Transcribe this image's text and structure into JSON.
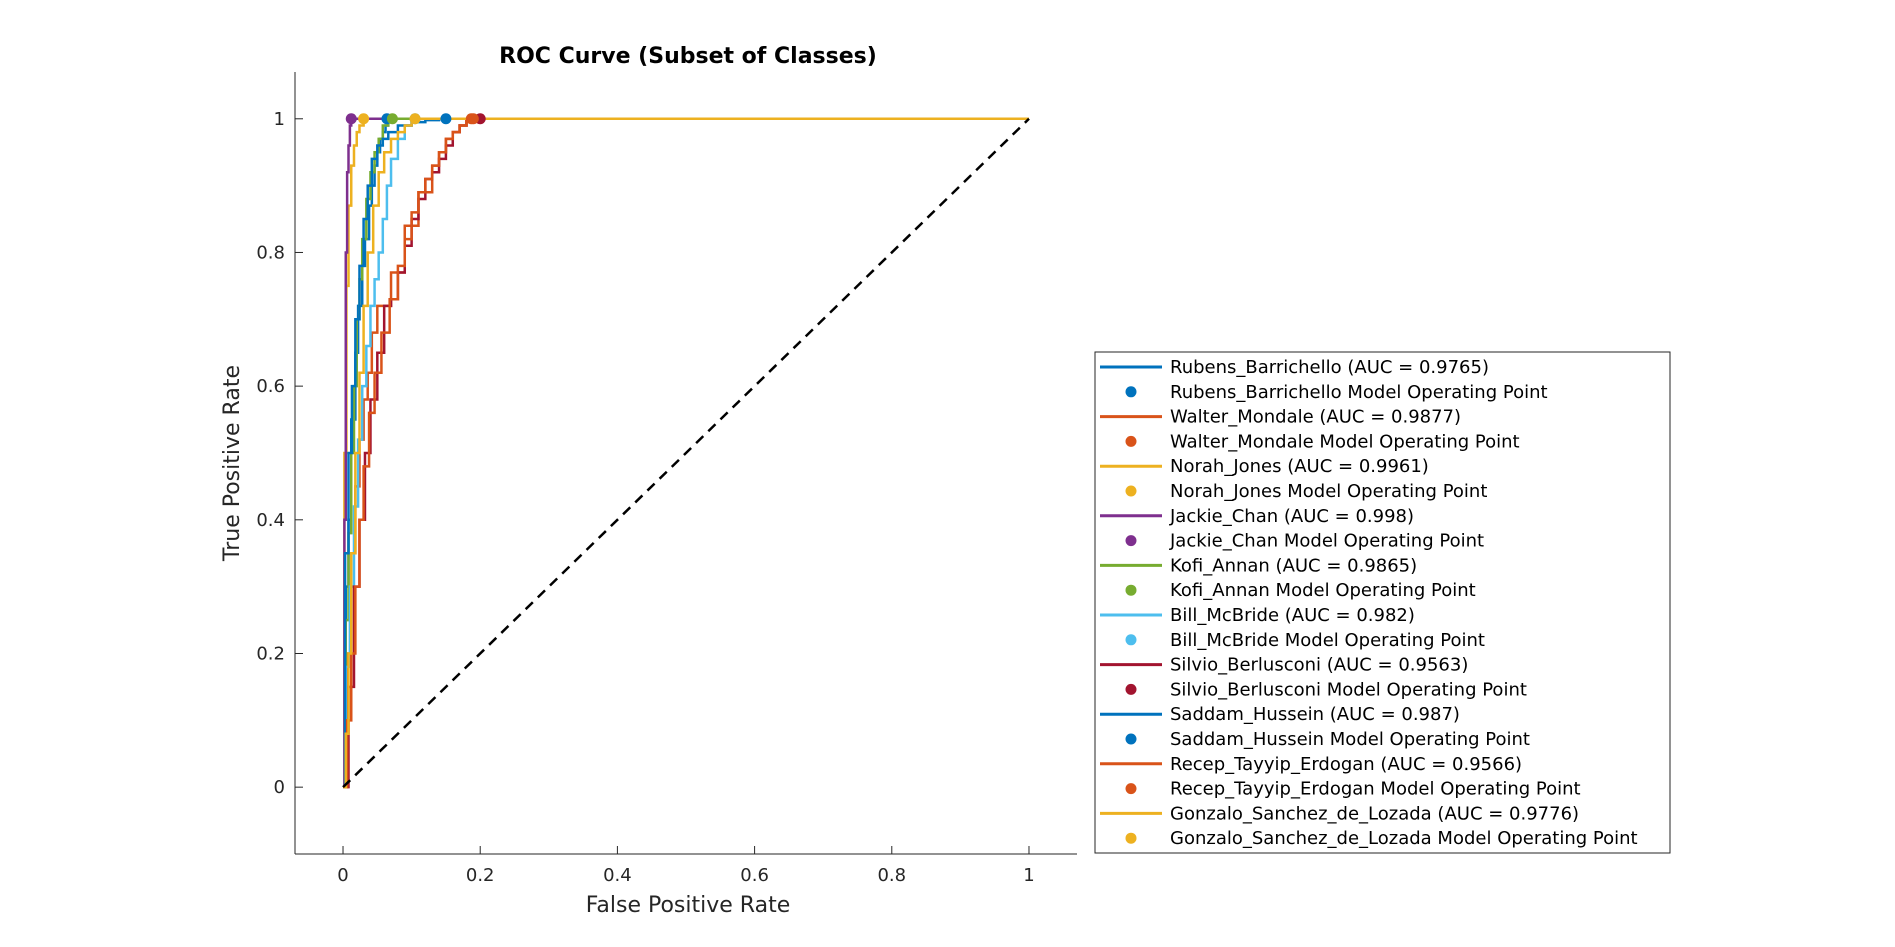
{
  "chart_data": {
    "type": "line",
    "title": "ROC Curve (Subset of Classes)",
    "xlabel": "False Positive Rate",
    "ylabel": "True Positive Rate",
    "xlim": [
      -0.07,
      1.07
    ],
    "ylim": [
      -0.1,
      1.07
    ],
    "xticks": [
      0,
      0.2,
      0.4,
      0.6,
      0.8,
      1
    ],
    "yticks": [
      0,
      0.2,
      0.4,
      0.6,
      0.8,
      1
    ],
    "xtick_labels": [
      "0",
      "0.2",
      "0.4",
      "0.6",
      "0.8",
      "1"
    ],
    "ytick_labels": [
      "0",
      "0.2",
      "0.4",
      "0.6",
      "0.8",
      "1"
    ],
    "grid": false,
    "legend_position": "right",
    "diagonal": {
      "x": [
        0,
        1
      ],
      "y": [
        0,
        1
      ],
      "style": "dashed",
      "color": "#000000"
    },
    "series": [
      {
        "label": "Rubens_Barrichello (AUC = 0.9765)",
        "point_label": "Rubens_Barrichello Model Operating Point",
        "color": "#0072BD",
        "x": [
          0,
          0.004,
          0.008,
          0.012,
          0.018,
          0.022,
          0.028,
          0.032,
          0.038,
          0.042,
          0.046,
          0.05,
          0.054,
          0.058,
          0.062,
          0.066,
          1
        ],
        "y": [
          0,
          0.3,
          0.4,
          0.55,
          0.65,
          0.72,
          0.78,
          0.82,
          0.87,
          0.9,
          0.93,
          0.95,
          0.97,
          0.98,
          0.99,
          1,
          1
        ],
        "op": [
          0.064,
          1
        ]
      },
      {
        "label": "Walter_Mondale (AUC = 0.9877)",
        "point_label": "Walter_Mondale Model Operating Point",
        "color": "#D95319",
        "x": [
          0,
          0.006,
          0.012,
          0.018,
          0.024,
          0.03,
          0.036,
          0.042,
          0.05,
          0.07,
          0.09,
          0.11,
          0.13,
          0.14,
          0.15,
          0.16,
          0.17,
          0.18,
          0.19,
          1
        ],
        "y": [
          0,
          0.2,
          0.35,
          0.45,
          0.52,
          0.58,
          0.62,
          0.68,
          0.72,
          0.77,
          0.84,
          0.89,
          0.93,
          0.95,
          0.97,
          0.98,
          0.99,
          1,
          1,
          1
        ],
        "op": [
          0.187,
          1
        ]
      },
      {
        "label": "Norah_Jones (AUC = 0.9961)",
        "point_label": "Norah_Jones Model Operating Point",
        "color": "#EDB120",
        "x": [
          0,
          0.002,
          0.005,
          0.008,
          0.012,
          0.016,
          0.02,
          0.024,
          0.03,
          0.036,
          1
        ],
        "y": [
          0,
          0.5,
          0.75,
          0.87,
          0.93,
          0.96,
          0.98,
          0.99,
          1,
          1,
          1
        ],
        "op": [
          0.03,
          1
        ]
      },
      {
        "label": "Jackie_Chan (AUC = 0.998)",
        "point_label": "Jackie_Chan Model Operating Point",
        "color": "#7E2F8E",
        "x": [
          0,
          0.002,
          0.004,
          0.006,
          0.008,
          0.01,
          0.012,
          1
        ],
        "y": [
          0,
          0.4,
          0.8,
          0.92,
          0.96,
          0.99,
          1,
          1
        ],
        "op": [
          0.012,
          1
        ]
      },
      {
        "label": "Kofi_Annan (AUC = 0.9865)",
        "point_label": "Kofi_Annan Model Operating Point",
        "color": "#77AC30",
        "x": [
          0,
          0.004,
          0.008,
          0.012,
          0.016,
          0.02,
          0.024,
          0.028,
          0.034,
          0.04,
          0.046,
          0.052,
          0.058,
          0.066,
          0.072,
          1
        ],
        "y": [
          0,
          0.25,
          0.38,
          0.5,
          0.6,
          0.7,
          0.76,
          0.82,
          0.88,
          0.92,
          0.95,
          0.97,
          0.99,
          1,
          1,
          1
        ],
        "op": [
          0.072,
          1
        ]
      },
      {
        "label": "Bill_McBride (AUC = 0.982)",
        "point_label": "Bill_McBride Model Operating Point",
        "color": "#4DBEEE",
        "x": [
          0,
          0.004,
          0.01,
          0.016,
          0.022,
          0.028,
          0.034,
          0.04,
          0.046,
          0.052,
          0.058,
          0.064,
          0.07,
          0.08,
          0.09,
          0.1,
          0.105,
          1
        ],
        "y": [
          0,
          0.18,
          0.3,
          0.42,
          0.52,
          0.6,
          0.66,
          0.72,
          0.76,
          0.8,
          0.85,
          0.9,
          0.94,
          0.97,
          0.99,
          1,
          1,
          1
        ],
        "op": [
          0.105,
          1
        ]
      },
      {
        "label": "Silvio_Berlusconi (AUC = 0.9563)",
        "point_label": "Silvio_Berlusconi Model Operating Point",
        "color": "#A2142F",
        "x": [
          0,
          0.008,
          0.016,
          0.024,
          0.032,
          0.04,
          0.05,
          0.06,
          0.07,
          0.08,
          0.09,
          0.1,
          0.11,
          0.12,
          0.13,
          0.14,
          0.15,
          0.16,
          0.17,
          0.18,
          0.19,
          0.2,
          1
        ],
        "y": [
          0,
          0.15,
          0.3,
          0.4,
          0.5,
          0.58,
          0.65,
          0.72,
          0.73,
          0.77,
          0.81,
          0.85,
          0.88,
          0.91,
          0.92,
          0.94,
          0.96,
          0.98,
          0.99,
          1,
          1,
          1,
          1
        ],
        "op": [
          0.2,
          1
        ]
      },
      {
        "label": "Saddam_Hussein (AUC = 0.987)",
        "point_label": "Saddam_Hussein Model Operating Point",
        "color": "#0072BD",
        "x": [
          0,
          0.003,
          0.008,
          0.013,
          0.018,
          0.024,
          0.03,
          0.036,
          0.042,
          0.05,
          0.058,
          0.066,
          0.08,
          0.1,
          0.12,
          0.14,
          0.15,
          1
        ],
        "y": [
          0,
          0.35,
          0.5,
          0.6,
          0.7,
          0.78,
          0.85,
          0.9,
          0.94,
          0.96,
          0.97,
          0.98,
          0.99,
          0.995,
          0.998,
          1,
          1,
          1
        ],
        "op": [
          0.15,
          1
        ]
      },
      {
        "label": "Recep_Tayyip_Erdogan (AUC = 0.9566)",
        "point_label": "Recep_Tayyip_Erdogan Model Operating Point",
        "color": "#D95319",
        "x": [
          0,
          0.006,
          0.012,
          0.018,
          0.024,
          0.03,
          0.038,
          0.046,
          0.056,
          0.068,
          0.08,
          0.09,
          0.1,
          0.11,
          0.12,
          0.13,
          0.14,
          0.15,
          0.16,
          0.17,
          0.18,
          0.19,
          1
        ],
        "y": [
          0,
          0.1,
          0.2,
          0.3,
          0.4,
          0.48,
          0.56,
          0.62,
          0.68,
          0.73,
          0.78,
          0.82,
          0.86,
          0.89,
          0.91,
          0.93,
          0.95,
          0.97,
          0.98,
          0.99,
          1,
          1,
          1
        ],
        "op": [
          0.19,
          1
        ]
      },
      {
        "label": "Gonzalo_Sanchez_de_Lozada (AUC = 0.9776)",
        "point_label": "Gonzalo_Sanchez_de_Lozada Model Operating Point",
        "color": "#EDB120",
        "x": [
          0,
          0.004,
          0.008,
          0.012,
          0.018,
          0.024,
          0.03,
          0.036,
          0.044,
          0.052,
          0.06,
          0.07,
          0.08,
          0.09,
          0.1,
          0.105,
          1
        ],
        "y": [
          0,
          0.08,
          0.2,
          0.35,
          0.5,
          0.62,
          0.72,
          0.8,
          0.87,
          0.92,
          0.95,
          0.97,
          0.98,
          0.99,
          1,
          1,
          1
        ],
        "op": [
          0.105,
          1
        ]
      }
    ]
  }
}
